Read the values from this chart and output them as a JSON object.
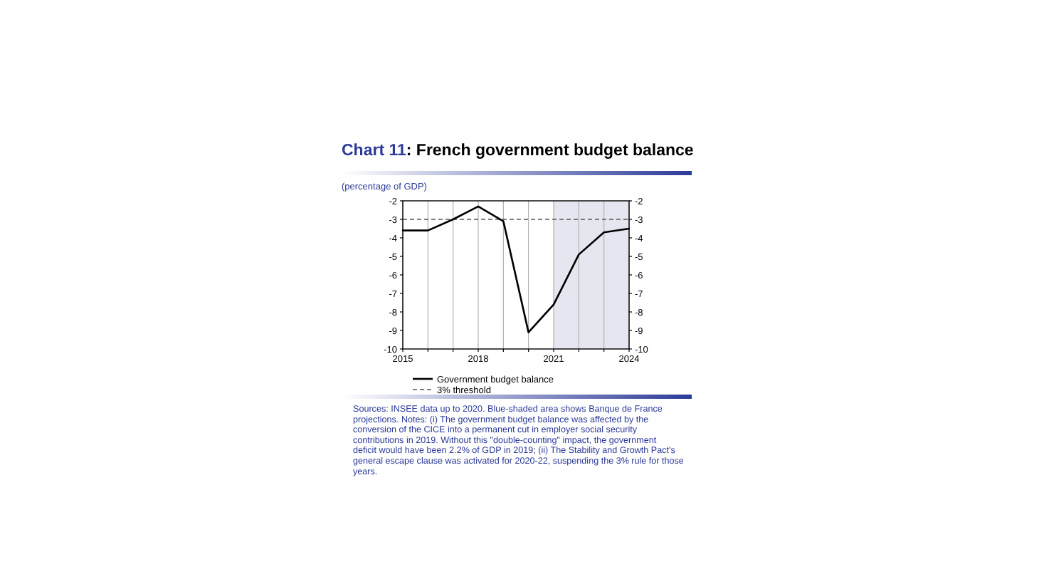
{
  "chart_data": {
    "type": "line",
    "title": "Chart 11: French government budget balance",
    "ylabel": "(percentage of GDP)",
    "x": [
      2015,
      2016,
      2017,
      2018,
      2019,
      2020,
      2021,
      2022,
      2023,
      2024
    ],
    "series": [
      {
        "name": "Government budget balance",
        "color": "#000000",
        "values": [
          -3.6,
          -3.6,
          -3.0,
          -2.3,
          -3.1,
          -9.1,
          -7.6,
          -4.9,
          -3.7,
          -3.5
        ]
      }
    ],
    "xlim": [
      2015,
      2024
    ],
    "xticks": [
      2015,
      {
        "value": 2016,
        "label": null
      },
      {
        "value": 2017,
        "label": null
      },
      2018,
      {
        "value": 2019,
        "label": null
      },
      {
        "value": 2020,
        "label": null
      },
      2021,
      {
        "value": 2022,
        "label": null
      },
      {
        "value": 2023,
        "label": null
      },
      2024
    ],
    "ylim": [
      -10,
      -2
    ],
    "yticks": [
      -10,
      -9,
      -8,
      -7,
      -6,
      -5,
      -4,
      -3,
      -2
    ],
    "y2lim": [
      -10,
      -2
    ],
    "y2ticks": [
      -10,
      -9,
      -8,
      -7,
      -6,
      -5,
      -4,
      -3,
      -2
    ],
    "ref_lines": [
      {
        "axis": "y",
        "value": -3,
        "label": "3% threshold",
        "color": "#555555",
        "line_style": "dashed"
      }
    ],
    "bands": [
      {
        "axis": "x",
        "from": 2021,
        "to": 2024,
        "color": "#e6e6f0"
      }
    ],
    "grid": "x",
    "legend": "bottom",
    "marker": "none",
    "line_style": "solid",
    "annotations": [
      "Sources: INSEE data up to 2020. Blue-shaded area shows Banque de France projections. Notes: (i) The government budget balance was affected by the conversion of the CICE into a permanent cut in employer social security contributions in 2019. Without this \"double-counting\" impact, the government deficit would have been 2.2% of GDP in 2019; (ii) The Stability and Growth Pact's general escape clause was activated for 2020-22, suspending the 3% rule for those years."
    ]
  }
}
